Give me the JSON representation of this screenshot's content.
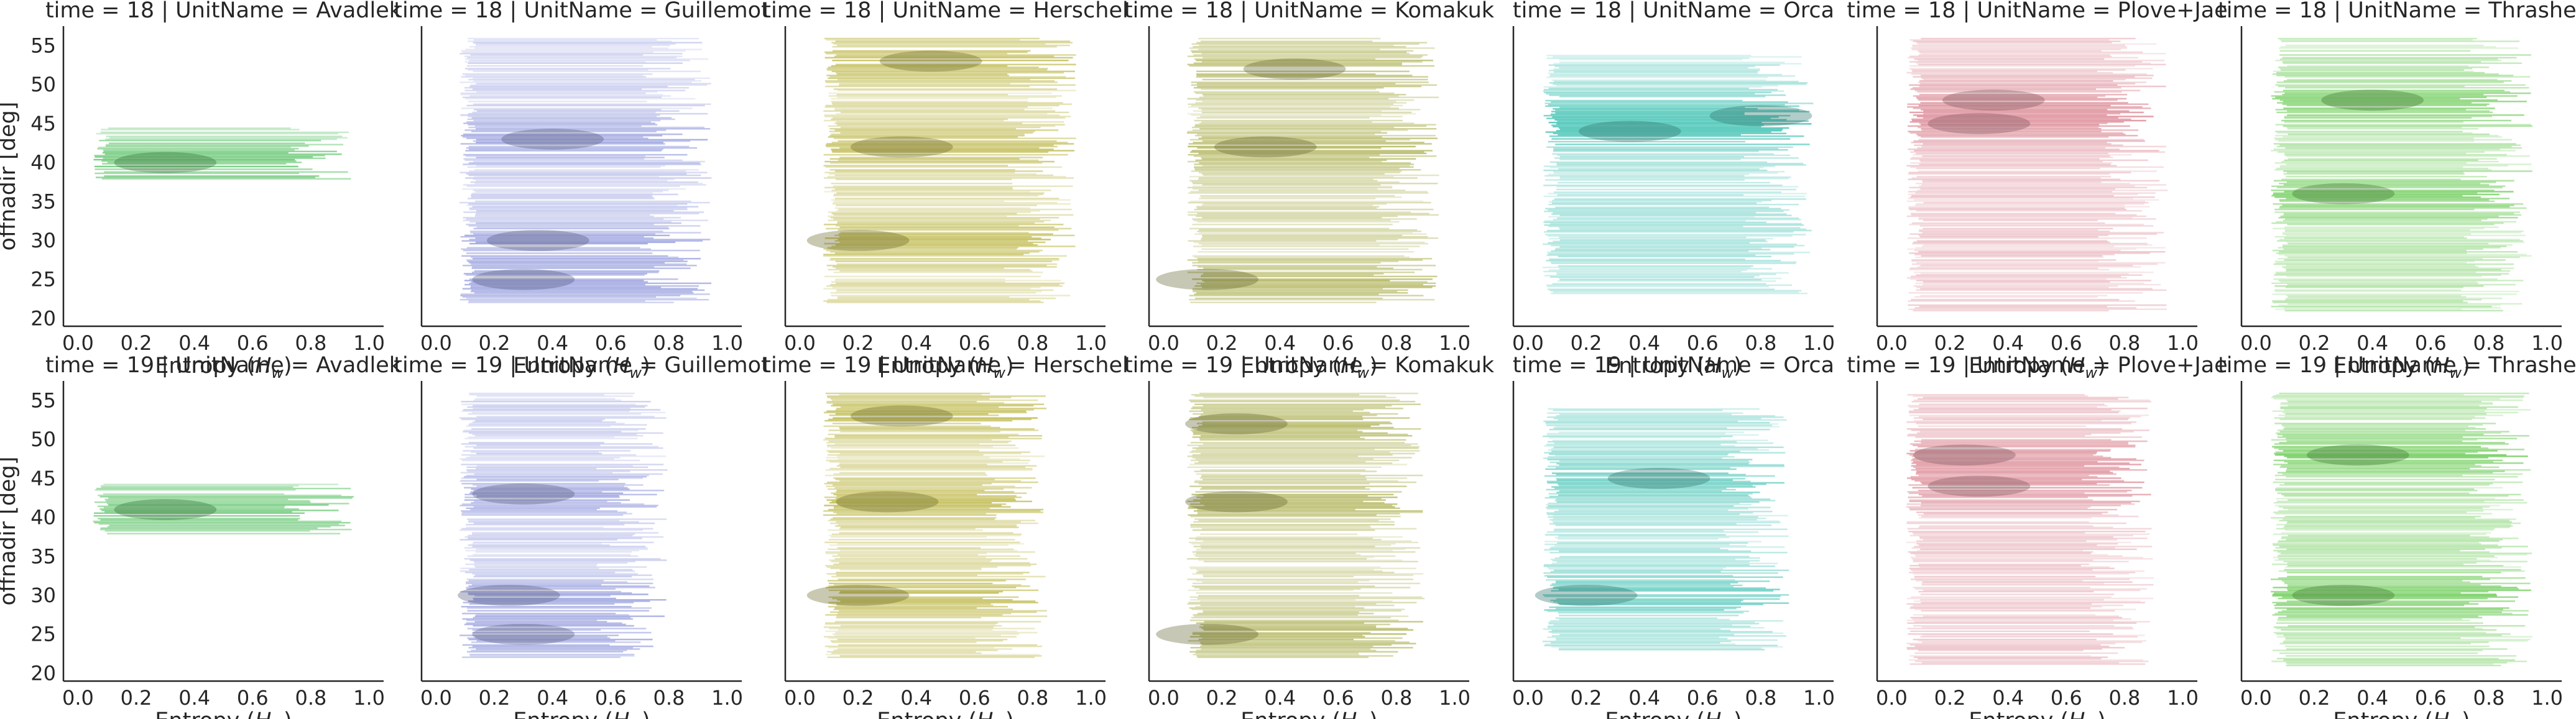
{
  "chart_data": {
    "type": "heatmap",
    "description_kind": "faceted 2D histogram grid",
    "rows": [
      {
        "time": 18,
        "title_prefix": "time = 18 | UnitName = "
      },
      {
        "time": 19,
        "title_prefix": "time = 19 | UnitName = "
      }
    ],
    "columns": [
      {
        "unit": "Avadlek",
        "color": "#4dbd5a"
      },
      {
        "unit": "Guillemot",
        "color": "#8e96db"
      },
      {
        "unit": "Herschel",
        "color": "#b8b23a"
      },
      {
        "unit": "Komakuk",
        "color": "#a9ad4a"
      },
      {
        "unit": "Orca",
        "color": "#48c4b6"
      },
      {
        "unit": "Plove+Jae",
        "color": "#dc8a96"
      },
      {
        "unit": "Thrasher",
        "color": "#62c84b"
      }
    ],
    "panel_titles": [
      [
        "time = 18 | UnitName = Avadlek",
        "time = 18 | UnitName = Guillemot",
        "time = 18 | UnitName = Herschel",
        "time = 18 | UnitName = Komakuk",
        "time = 18 | UnitName = Orca",
        "time = 18 | UnitName = Plove+Jae",
        "time = 18 | UnitName = Thrasher"
      ],
      [
        "time = 19 | UnitName = Avadlek",
        "time = 19 | UnitName = Guillemot",
        "time = 19 | UnitName = Herschel",
        "time = 19 | UnitName = Komakuk",
        "time = 19 | UnitName = Orca",
        "time = 19 | UnitName = Plove+Jae",
        "time = 19 | UnitName = Thrasher"
      ]
    ],
    "xlabel": "Entropy ($H_w$)",
    "xlabel_base": "Entropy (",
    "xlabel_sym": "H",
    "xlabel_sub": "w",
    "xlabel_end": ")",
    "ylabel": "offnadir [deg]",
    "xlim": [
      -0.05,
      1.05
    ],
    "ylim": [
      19,
      57.5
    ],
    "xticks": [
      0.0,
      0.2,
      0.4,
      0.6,
      0.8,
      1.0
    ],
    "xtick_labels": [
      "0.0",
      "0.2",
      "0.4",
      "0.6",
      "0.8",
      "1.0"
    ],
    "yticks": [
      20,
      25,
      30,
      35,
      40,
      45,
      50,
      55
    ],
    "ytick_labels": [
      "20",
      "25",
      "30",
      "35",
      "40",
      "45",
      "50",
      "55"
    ],
    "grid": false,
    "extents": [
      [
        {
          "x": [
            0.05,
            0.95
          ],
          "y": [
            38,
            44.5
          ],
          "dense": [
            [
              0.3,
              40
            ]
          ]
        },
        {
          "x": [
            0.08,
            0.95
          ],
          "y": [
            22,
            56
          ],
          "dense": [
            [
              0.35,
              30
            ],
            [
              0.4,
              43
            ],
            [
              0.3,
              25
            ]
          ]
        },
        {
          "x": [
            0.08,
            0.95
          ],
          "y": [
            22,
            56
          ],
          "dense": [
            [
              0.45,
              53
            ],
            [
              0.35,
              42
            ],
            [
              0.2,
              30
            ]
          ]
        },
        {
          "x": [
            0.08,
            0.95
          ],
          "y": [
            22,
            56
          ],
          "dense": [
            [
              0.45,
              52
            ],
            [
              0.35,
              42
            ],
            [
              0.15,
              25
            ]
          ]
        },
        {
          "x": [
            0.05,
            0.98
          ],
          "y": [
            23,
            54
          ],
          "dense": [
            [
              0.8,
              46
            ],
            [
              0.35,
              44
            ]
          ]
        },
        {
          "x": [
            0.05,
            0.95
          ],
          "y": [
            21,
            56
          ],
          "dense": [
            [
              0.35,
              48
            ],
            [
              0.3,
              45
            ]
          ]
        },
        {
          "x": [
            0.05,
            0.95
          ],
          "y": [
            21,
            56
          ],
          "dense": [
            [
              0.4,
              48
            ],
            [
              0.3,
              36
            ]
          ]
        }
      ],
      [
        {
          "x": [
            0.05,
            0.95
          ],
          "y": [
            38,
            44.5
          ],
          "dense": [
            [
              0.3,
              41
            ]
          ]
        },
        {
          "x": [
            0.08,
            0.8
          ],
          "y": [
            22,
            56
          ],
          "dense": [
            [
              0.25,
              30
            ],
            [
              0.3,
              43
            ],
            [
              0.3,
              25
            ]
          ]
        },
        {
          "x": [
            0.08,
            0.85
          ],
          "y": [
            22,
            56
          ],
          "dense": [
            [
              0.35,
              53
            ],
            [
              0.3,
              42
            ],
            [
              0.2,
              30
            ]
          ]
        },
        {
          "x": [
            0.08,
            0.9
          ],
          "y": [
            22,
            56
          ],
          "dense": [
            [
              0.25,
              52
            ],
            [
              0.25,
              42
            ],
            [
              0.15,
              25
            ]
          ]
        },
        {
          "x": [
            0.05,
            0.9
          ],
          "y": [
            23,
            54
          ],
          "dense": [
            [
              0.45,
              45
            ],
            [
              0.2,
              30
            ]
          ]
        },
        {
          "x": [
            0.05,
            0.9
          ],
          "y": [
            21,
            56
          ],
          "dense": [
            [
              0.25,
              48
            ],
            [
              0.3,
              44
            ]
          ]
        },
        {
          "x": [
            0.05,
            0.95
          ],
          "y": [
            21,
            56
          ],
          "dense": [
            [
              0.35,
              48
            ],
            [
              0.3,
              30
            ]
          ]
        }
      ]
    ]
  }
}
